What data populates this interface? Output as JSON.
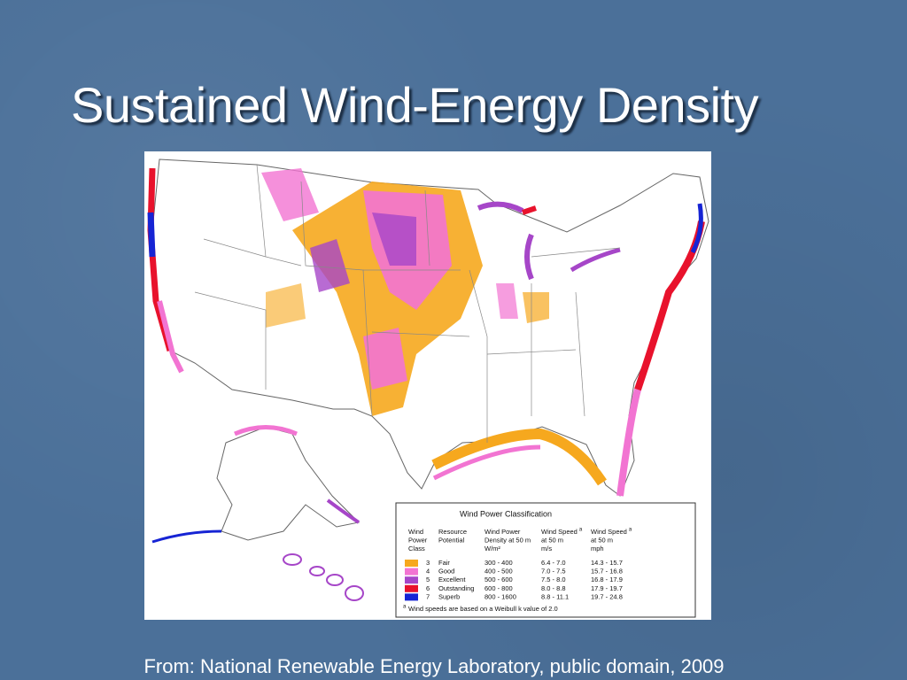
{
  "header": {
    "title": "Sustained Wind-Energy Density"
  },
  "source": "From: National Renewable Energy Laboratory, public domain, 2009",
  "legend": {
    "title": "Wind Power Classification",
    "columns": [
      {
        "lines": [
          "Wind",
          "Power",
          "Class"
        ]
      },
      {
        "lines": [
          "Resource",
          "Potential"
        ]
      },
      {
        "lines": [
          "Wind Power",
          "Density at 50 m",
          "W/m²"
        ]
      },
      {
        "lines": [
          "Wind Speed",
          "at 50 m",
          "m/s"
        ],
        "note": "a"
      },
      {
        "lines": [
          "Wind Speed",
          "at 50 m",
          "mph"
        ],
        "note": "a"
      }
    ],
    "rows": [
      {
        "color": "#f6a81e",
        "cells": [
          "3",
          "Fair",
          "300 - 400",
          "6.4 - 7.0",
          "14.3 - 15.7"
        ]
      },
      {
        "color": "#f274d2",
        "cells": [
          "4",
          "Good",
          "400 - 500",
          "7.0 - 7.5",
          "15.7 - 16.8"
        ]
      },
      {
        "color": "#a646c8",
        "cells": [
          "5",
          "Excellent",
          "500 - 600",
          "7.5 - 8.0",
          "16.8 - 17.9"
        ]
      },
      {
        "color": "#e8122c",
        "cells": [
          "6",
          "Outstanding",
          "600 - 800",
          "8.0 - 8.8",
          "17.9 - 19.7"
        ]
      },
      {
        "color": "#1624d4",
        "cells": [
          "7",
          "Superb",
          "800 - 1600",
          "8.8 - 11.1",
          "19.7 - 24.8"
        ]
      }
    ],
    "footnote": {
      "marker": "a",
      "text": "Wind speeds are based on a Weibull k value of 2.0"
    }
  }
}
